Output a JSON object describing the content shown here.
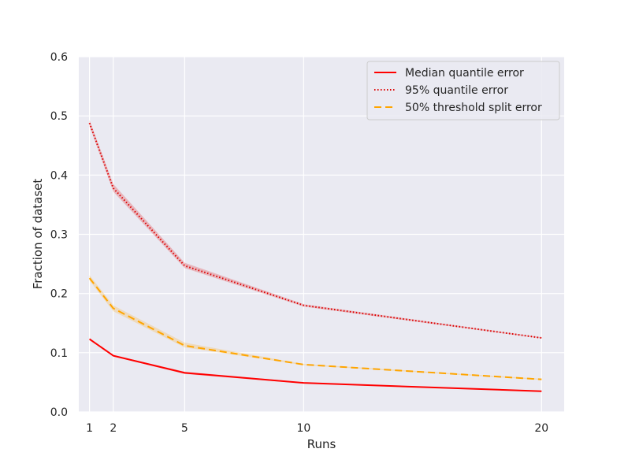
{
  "chart_data": {
    "type": "line",
    "title": "",
    "xlabel": "Runs",
    "ylabel": "Fraction of dataset",
    "x": [
      1,
      2,
      5,
      10,
      20
    ],
    "xticks": [
      1,
      2,
      5,
      10,
      20
    ],
    "yticks": [
      "0.0",
      "0.1",
      "0.2",
      "0.3",
      "0.4",
      "0.5",
      "0.6"
    ],
    "xlim": [
      0.55,
      20.95
    ],
    "ylim": [
      0,
      0.6
    ],
    "grid": true,
    "background": "#eaeaf2",
    "legend_position": "upper right",
    "series": [
      {
        "name": "Median quantile error",
        "color": "#ff0000",
        "style": "solid",
        "values": [
          0.123,
          0.095,
          0.066,
          0.049,
          0.035
        ],
        "band_low": [
          0.122,
          0.094,
          0.064,
          0.048,
          0.034
        ],
        "band_high": [
          0.125,
          0.096,
          0.068,
          0.05,
          0.036
        ]
      },
      {
        "name": "95% quantile error",
        "color": "#dd0000",
        "style": "dotted",
        "values": [
          0.488,
          0.378,
          0.247,
          0.18,
          0.125
        ],
        "band_low": [
          0.483,
          0.372,
          0.243,
          0.178,
          0.124
        ],
        "band_high": [
          0.493,
          0.385,
          0.252,
          0.182,
          0.126
        ]
      },
      {
        "name": "50% threshold split error",
        "color": "#ffa500",
        "style": "dashed",
        "values": [
          0.226,
          0.175,
          0.112,
          0.08,
          0.055
        ],
        "band_low": [
          0.222,
          0.17,
          0.109,
          0.079,
          0.054
        ],
        "band_high": [
          0.231,
          0.18,
          0.117,
          0.081,
          0.056
        ]
      }
    ]
  }
}
